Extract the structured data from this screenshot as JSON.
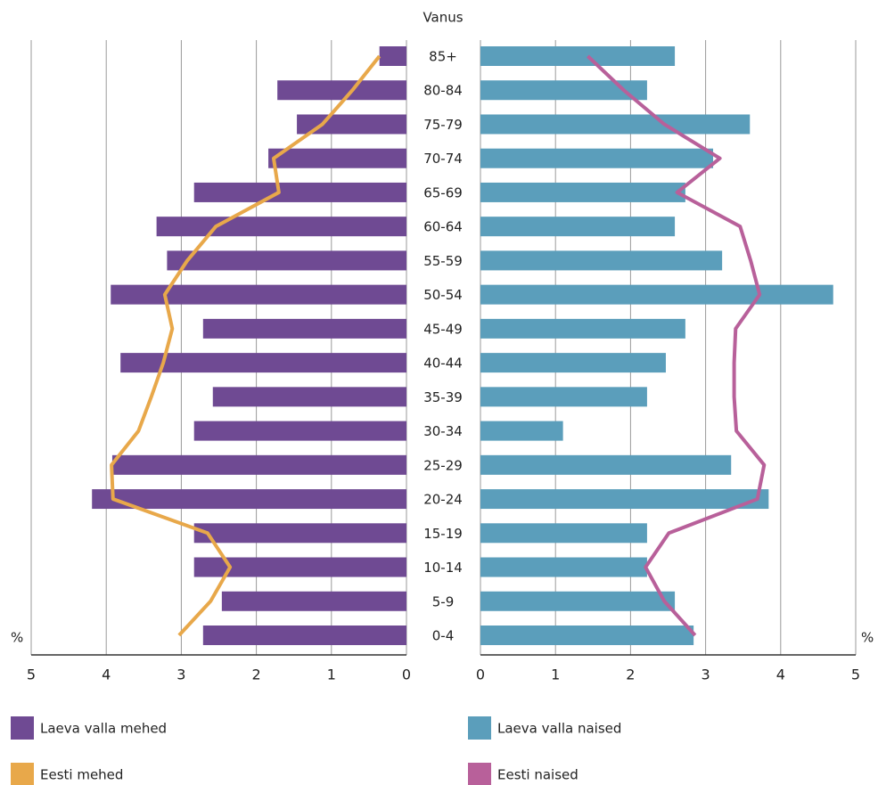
{
  "chart_data": {
    "type": "bar",
    "orientation": "pyramid",
    "ylabel": "Vanus",
    "xlabel": "%",
    "categories": [
      "85+",
      "80-84",
      "75-79",
      "70-74",
      "65-69",
      "60-64",
      "55-59",
      "50-54",
      "45-49",
      "40-44",
      "35-39",
      "30-34",
      "25-29",
      "20-24",
      "15-19",
      "10-14",
      "5-9",
      "0-4"
    ],
    "series": [
      {
        "name": "Laeva valla mehed",
        "color": "#6f4a93",
        "kind": "bar",
        "side": "left",
        "values": [
          0.36,
          1.72,
          1.46,
          1.84,
          2.83,
          3.33,
          3.19,
          3.94,
          2.71,
          3.81,
          2.58,
          2.83,
          3.92,
          4.19,
          2.83,
          2.83,
          2.46,
          2.71
        ]
      },
      {
        "name": "Laeva valla naised",
        "color": "#5b9ebb",
        "kind": "bar",
        "side": "right",
        "values": [
          2.59,
          2.22,
          3.59,
          3.1,
          2.73,
          2.59,
          3.22,
          4.7,
          2.73,
          2.47,
          2.22,
          1.1,
          3.34,
          3.84,
          2.22,
          2.22,
          2.59,
          2.84
        ]
      },
      {
        "name": "Eesti mehed",
        "color": "#e8a84a",
        "kind": "line",
        "side": "left",
        "values": [
          0.36,
          0.72,
          1.12,
          1.77,
          1.7,
          2.54,
          2.92,
          3.22,
          3.12,
          3.24,
          3.4,
          3.57,
          3.93,
          3.91,
          2.65,
          2.35,
          2.61,
          3.03
        ]
      },
      {
        "name": "Eesti naised",
        "color": "#b8609a",
        "kind": "line",
        "side": "right",
        "values": [
          1.43,
          1.91,
          2.45,
          3.19,
          2.62,
          3.46,
          3.6,
          3.72,
          3.4,
          3.38,
          3.38,
          3.41,
          3.78,
          3.69,
          2.51,
          2.2,
          2.45,
          2.86
        ]
      }
    ],
    "xlim": [
      0,
      5
    ],
    "xticks": [
      0,
      1,
      2,
      3,
      4,
      5
    ],
    "grid": true
  }
}
